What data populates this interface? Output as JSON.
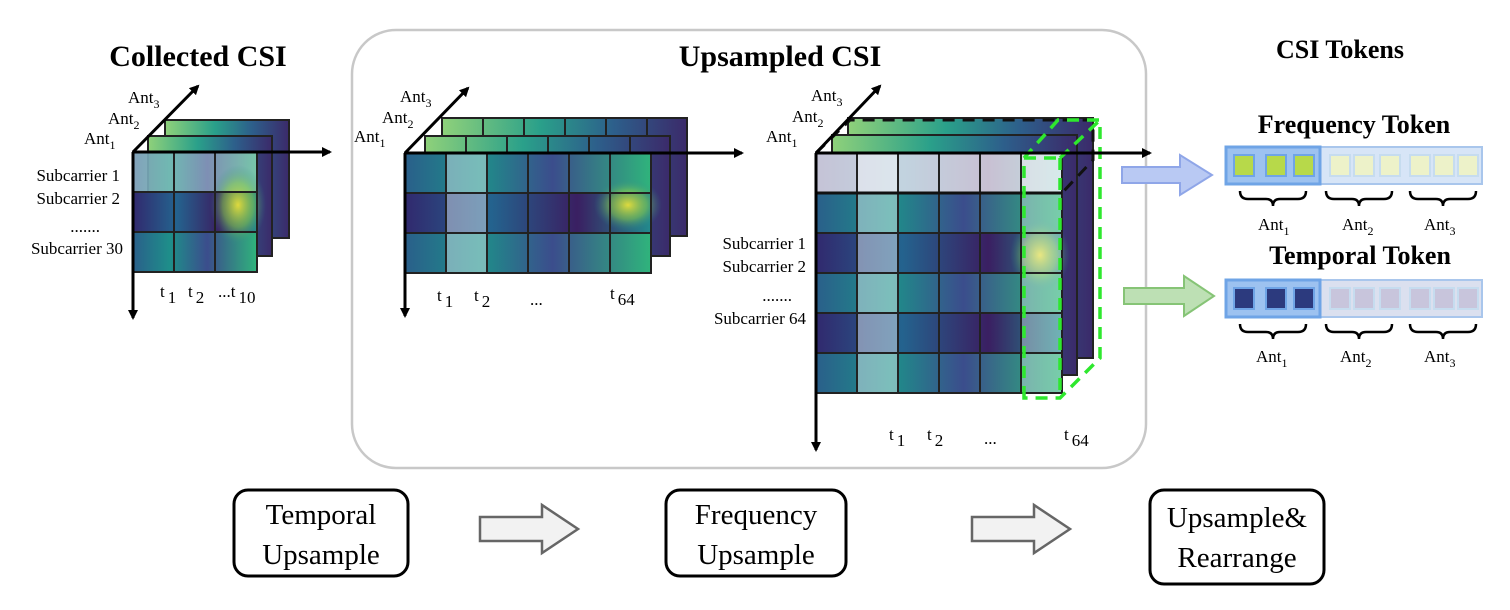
{
  "titles": {
    "collected": "Collected CSI",
    "upsampled": "Upsampled CSI",
    "tokens": "CSI Tokens"
  },
  "antennas": {
    "prefix": "Ant",
    "subs": [
      "1",
      "2",
      "3"
    ]
  },
  "collected_panel": {
    "rows": [
      "Subcarrier 1",
      "Subcarrier 2",
      ".......",
      "Subcarrier 30"
    ],
    "times": [
      "t",
      "1",
      "t",
      "2",
      "...t",
      "10"
    ]
  },
  "upsampled_panel1": {
    "times": [
      "t",
      "1",
      "t",
      "2",
      "...",
      "t",
      "64"
    ]
  },
  "upsampled_panel2": {
    "rows": [
      "Subcarrier 1",
      "Subcarrier 2",
      ".......",
      "Subcarrier 64"
    ],
    "times": [
      "t",
      "1",
      "t",
      "2",
      "...",
      "t",
      "64"
    ]
  },
  "tokens": {
    "frequency": {
      "label": "Frequency Token",
      "ants": [
        "1",
        "2",
        "3"
      ],
      "color": "#b9c9f3"
    },
    "temporal": {
      "label": "Temporal Token",
      "ants": [
        "1",
        "2",
        "3"
      ],
      "color": "#bde0b4"
    }
  },
  "steps": [
    {
      "line1": "Temporal",
      "line2": "Upsample"
    },
    {
      "line1": "Frequency",
      "line2": "Upsample"
    },
    {
      "line1": "Upsample&",
      "line2": "Rearrange"
    }
  ],
  "colors": {
    "viridis_dark": "#3b1f5e",
    "viridis_teal": "#2c8a8a",
    "viridis_green": "#5ec962",
    "viridis_yellow": "#e8e03a",
    "highlight_green": "#2ee82e",
    "frame": "#c8c8c8"
  }
}
